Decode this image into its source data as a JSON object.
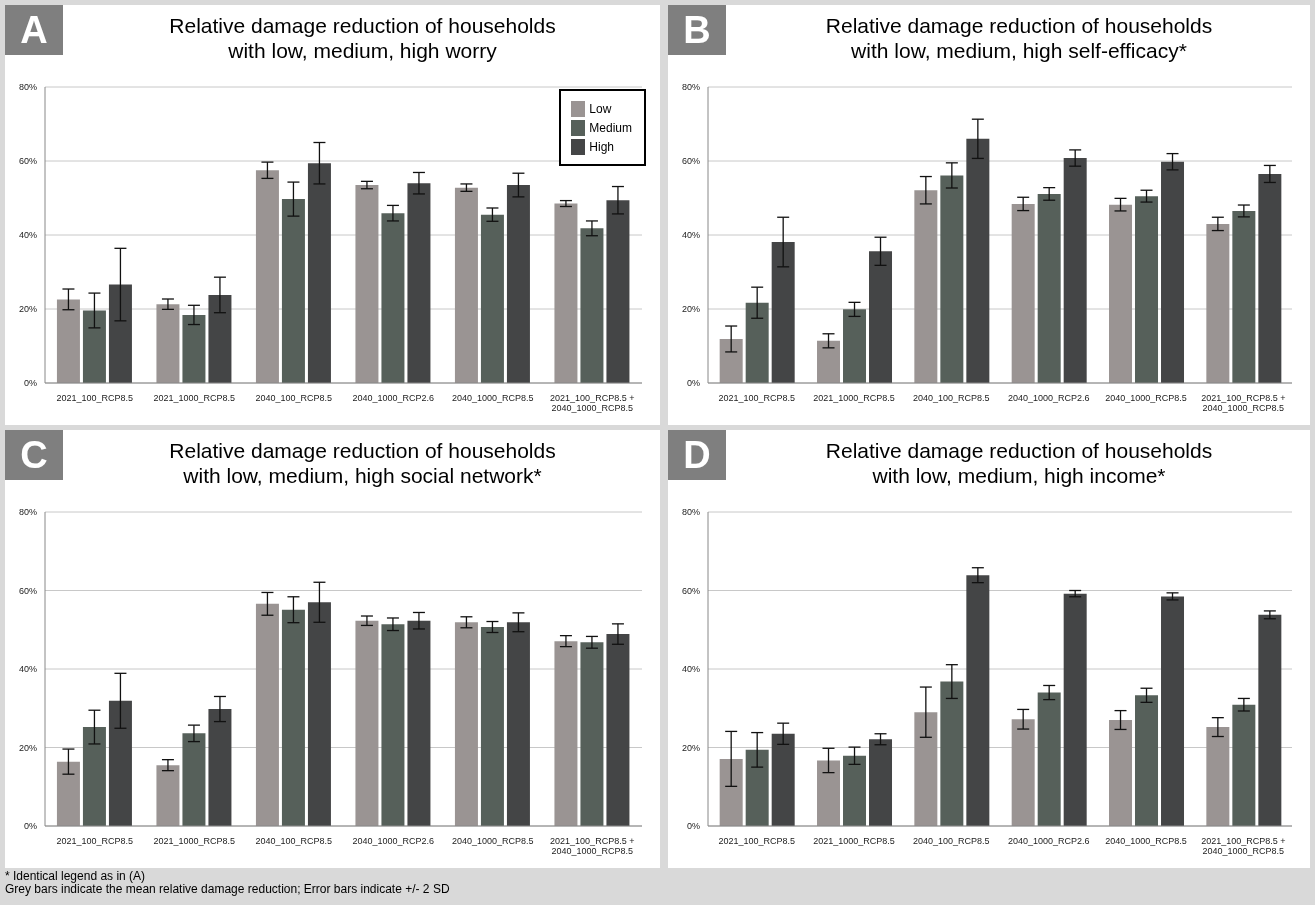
{
  "chart_data": [
    {
      "type": "bar",
      "title": "Relative damage reduction of households\nwith low, medium, high worry",
      "annotations": [
        "A"
      ],
      "categories": [
        "2021_100_RCP8.5",
        "2021_1000_RCP8.5",
        "2040_100_RCP8.5",
        "2040_1000_RCP2.6",
        "2040_1000_RCP8.5",
        "2021_100_RCP8.5 + 2040_1000_RCP8.5"
      ],
      "ylim": [
        0,
        80
      ],
      "yticks": [
        {
          "value": 0,
          "label": "0%"
        },
        {
          "value": 20,
          "label": "20%"
        },
        {
          "value": 40,
          "label": "40%"
        },
        {
          "value": 60,
          "label": "60%"
        },
        {
          "value": 80,
          "label": "80%"
        }
      ],
      "grid": "y",
      "legend": "top right",
      "series": [
        {
          "name": "Low",
          "color": "#9a9493",
          "values": [
            22.6,
            21.3,
            57.5,
            53.5,
            52.8,
            48.5
          ],
          "errors": [
            2.8,
            1.4,
            2.2,
            1.0,
            1.0,
            0.8
          ]
        },
        {
          "name": "Medium",
          "color": "#56605a",
          "values": [
            19.6,
            18.4,
            49.7,
            45.9,
            45.5,
            41.8
          ],
          "errors": [
            4.7,
            2.6,
            4.6,
            2.1,
            1.8,
            2.0
          ]
        },
        {
          "name": "High",
          "color": "#444546",
          "values": [
            26.6,
            23.8,
            59.4,
            54.0,
            53.5,
            49.4
          ],
          "errors": [
            9.8,
            4.8,
            5.6,
            2.9,
            3.2,
            3.7
          ]
        }
      ]
    },
    {
      "type": "bar",
      "title": "Relative damage reduction of households\nwith low, medium, high self-efficacy*",
      "annotations": [
        "B"
      ],
      "categories": [
        "2021_100_RCP8.5",
        "2021_1000_RCP8.5",
        "2040_100_RCP8.5",
        "2040_1000_RCP2.6",
        "2040_1000_RCP8.5",
        "2021_100_RCP8.5 + 2040_1000_RCP8.5"
      ],
      "ylim": [
        0,
        80
      ],
      "yticks": [
        {
          "value": 0,
          "label": "0%"
        },
        {
          "value": 20,
          "label": "20%"
        },
        {
          "value": 40,
          "label": "40%"
        },
        {
          "value": 60,
          "label": "60%"
        },
        {
          "value": 80,
          "label": "80%"
        }
      ],
      "grid": "y",
      "series": [
        {
          "color": "#9a9493",
          "values": [
            11.9,
            11.4,
            52.1,
            48.4,
            48.2,
            43.0
          ],
          "errors": [
            3.5,
            1.9,
            3.7,
            1.8,
            1.7,
            1.8
          ]
        },
        {
          "color": "#56605a",
          "values": [
            21.7,
            19.9,
            56.1,
            51.1,
            50.5,
            46.5
          ],
          "errors": [
            4.2,
            1.9,
            3.4,
            1.7,
            1.6,
            1.6
          ]
        },
        {
          "color": "#444546",
          "values": [
            38.1,
            35.6,
            66.0,
            60.8,
            59.8,
            56.5
          ],
          "errors": [
            6.7,
            3.8,
            5.3,
            2.2,
            2.2,
            2.3
          ]
        }
      ]
    },
    {
      "type": "bar",
      "title": "Relative damage reduction of households\nwith low, medium, high social network*",
      "annotations": [
        "C"
      ],
      "categories": [
        "2021_100_RCP8.5",
        "2021_1000_RCP8.5",
        "2040_100_RCP8.5",
        "2040_1000_RCP2.6",
        "2040_1000_RCP8.5",
        "2021_100_RCP8.5 + 2040_1000_RCP8.5"
      ],
      "ylim": [
        0,
        80
      ],
      "yticks": [
        {
          "value": 0,
          "label": "0%"
        },
        {
          "value": 20,
          "label": "20%"
        },
        {
          "value": 40,
          "label": "40%"
        },
        {
          "value": 60,
          "label": "60%"
        },
        {
          "value": 80,
          "label": "80%"
        }
      ],
      "grid": "y",
      "series": [
        {
          "color": "#9a9493",
          "values": [
            16.4,
            15.5,
            56.6,
            52.3,
            51.9,
            47.1
          ],
          "errors": [
            3.2,
            1.4,
            2.9,
            1.2,
            1.4,
            1.4
          ]
        },
        {
          "color": "#56605a",
          "values": [
            25.2,
            23.6,
            55.1,
            51.4,
            50.7,
            46.8
          ],
          "errors": [
            4.3,
            2.1,
            3.3,
            1.6,
            1.4,
            1.5
          ]
        },
        {
          "color": "#444546",
          "values": [
            31.9,
            29.8,
            57.0,
            52.3,
            51.9,
            48.9
          ],
          "errors": [
            7.0,
            3.2,
            5.1,
            2.1,
            2.4,
            2.6
          ]
        }
      ]
    },
    {
      "type": "bar",
      "title": "Relative damage reduction of households\nwith low, medium, high income*",
      "annotations": [
        "D",
        "* Identical legend as in (A)",
        "Grey bars indicate the mean relative damage reduction; Error bars indicate +/- 2 SD"
      ],
      "categories": [
        "2021_100_RCP8.5",
        "2021_1000_RCP8.5",
        "2040_100_RCP8.5",
        "2040_1000_RCP2.6",
        "2040_1000_RCP8.5",
        "2021_100_RCP8.5 + 2040_1000_RCP8.5"
      ],
      "ylim": [
        0,
        80
      ],
      "yticks": [
        {
          "value": 0,
          "label": "0%"
        },
        {
          "value": 20,
          "label": "20%"
        },
        {
          "value": 40,
          "label": "40%"
        },
        {
          "value": 60,
          "label": "60%"
        },
        {
          "value": 80,
          "label": "80%"
        }
      ],
      "grid": "y",
      "series": [
        {
          "color": "#9a9493",
          "values": [
            17.1,
            16.7,
            29.0,
            27.2,
            27.0,
            25.2
          ],
          "errors": [
            7.0,
            3.1,
            6.4,
            2.5,
            2.4,
            2.4
          ]
        },
        {
          "color": "#56605a",
          "values": [
            19.4,
            17.9,
            36.8,
            34.0,
            33.3,
            30.9
          ],
          "errors": [
            4.4,
            2.2,
            4.3,
            1.8,
            1.8,
            1.6
          ]
        },
        {
          "color": "#444546",
          "values": [
            23.5,
            22.1,
            63.9,
            59.2,
            58.5,
            53.8
          ],
          "errors": [
            2.7,
            1.4,
            1.9,
            0.8,
            0.9,
            1.0
          ]
        }
      ]
    }
  ]
}
